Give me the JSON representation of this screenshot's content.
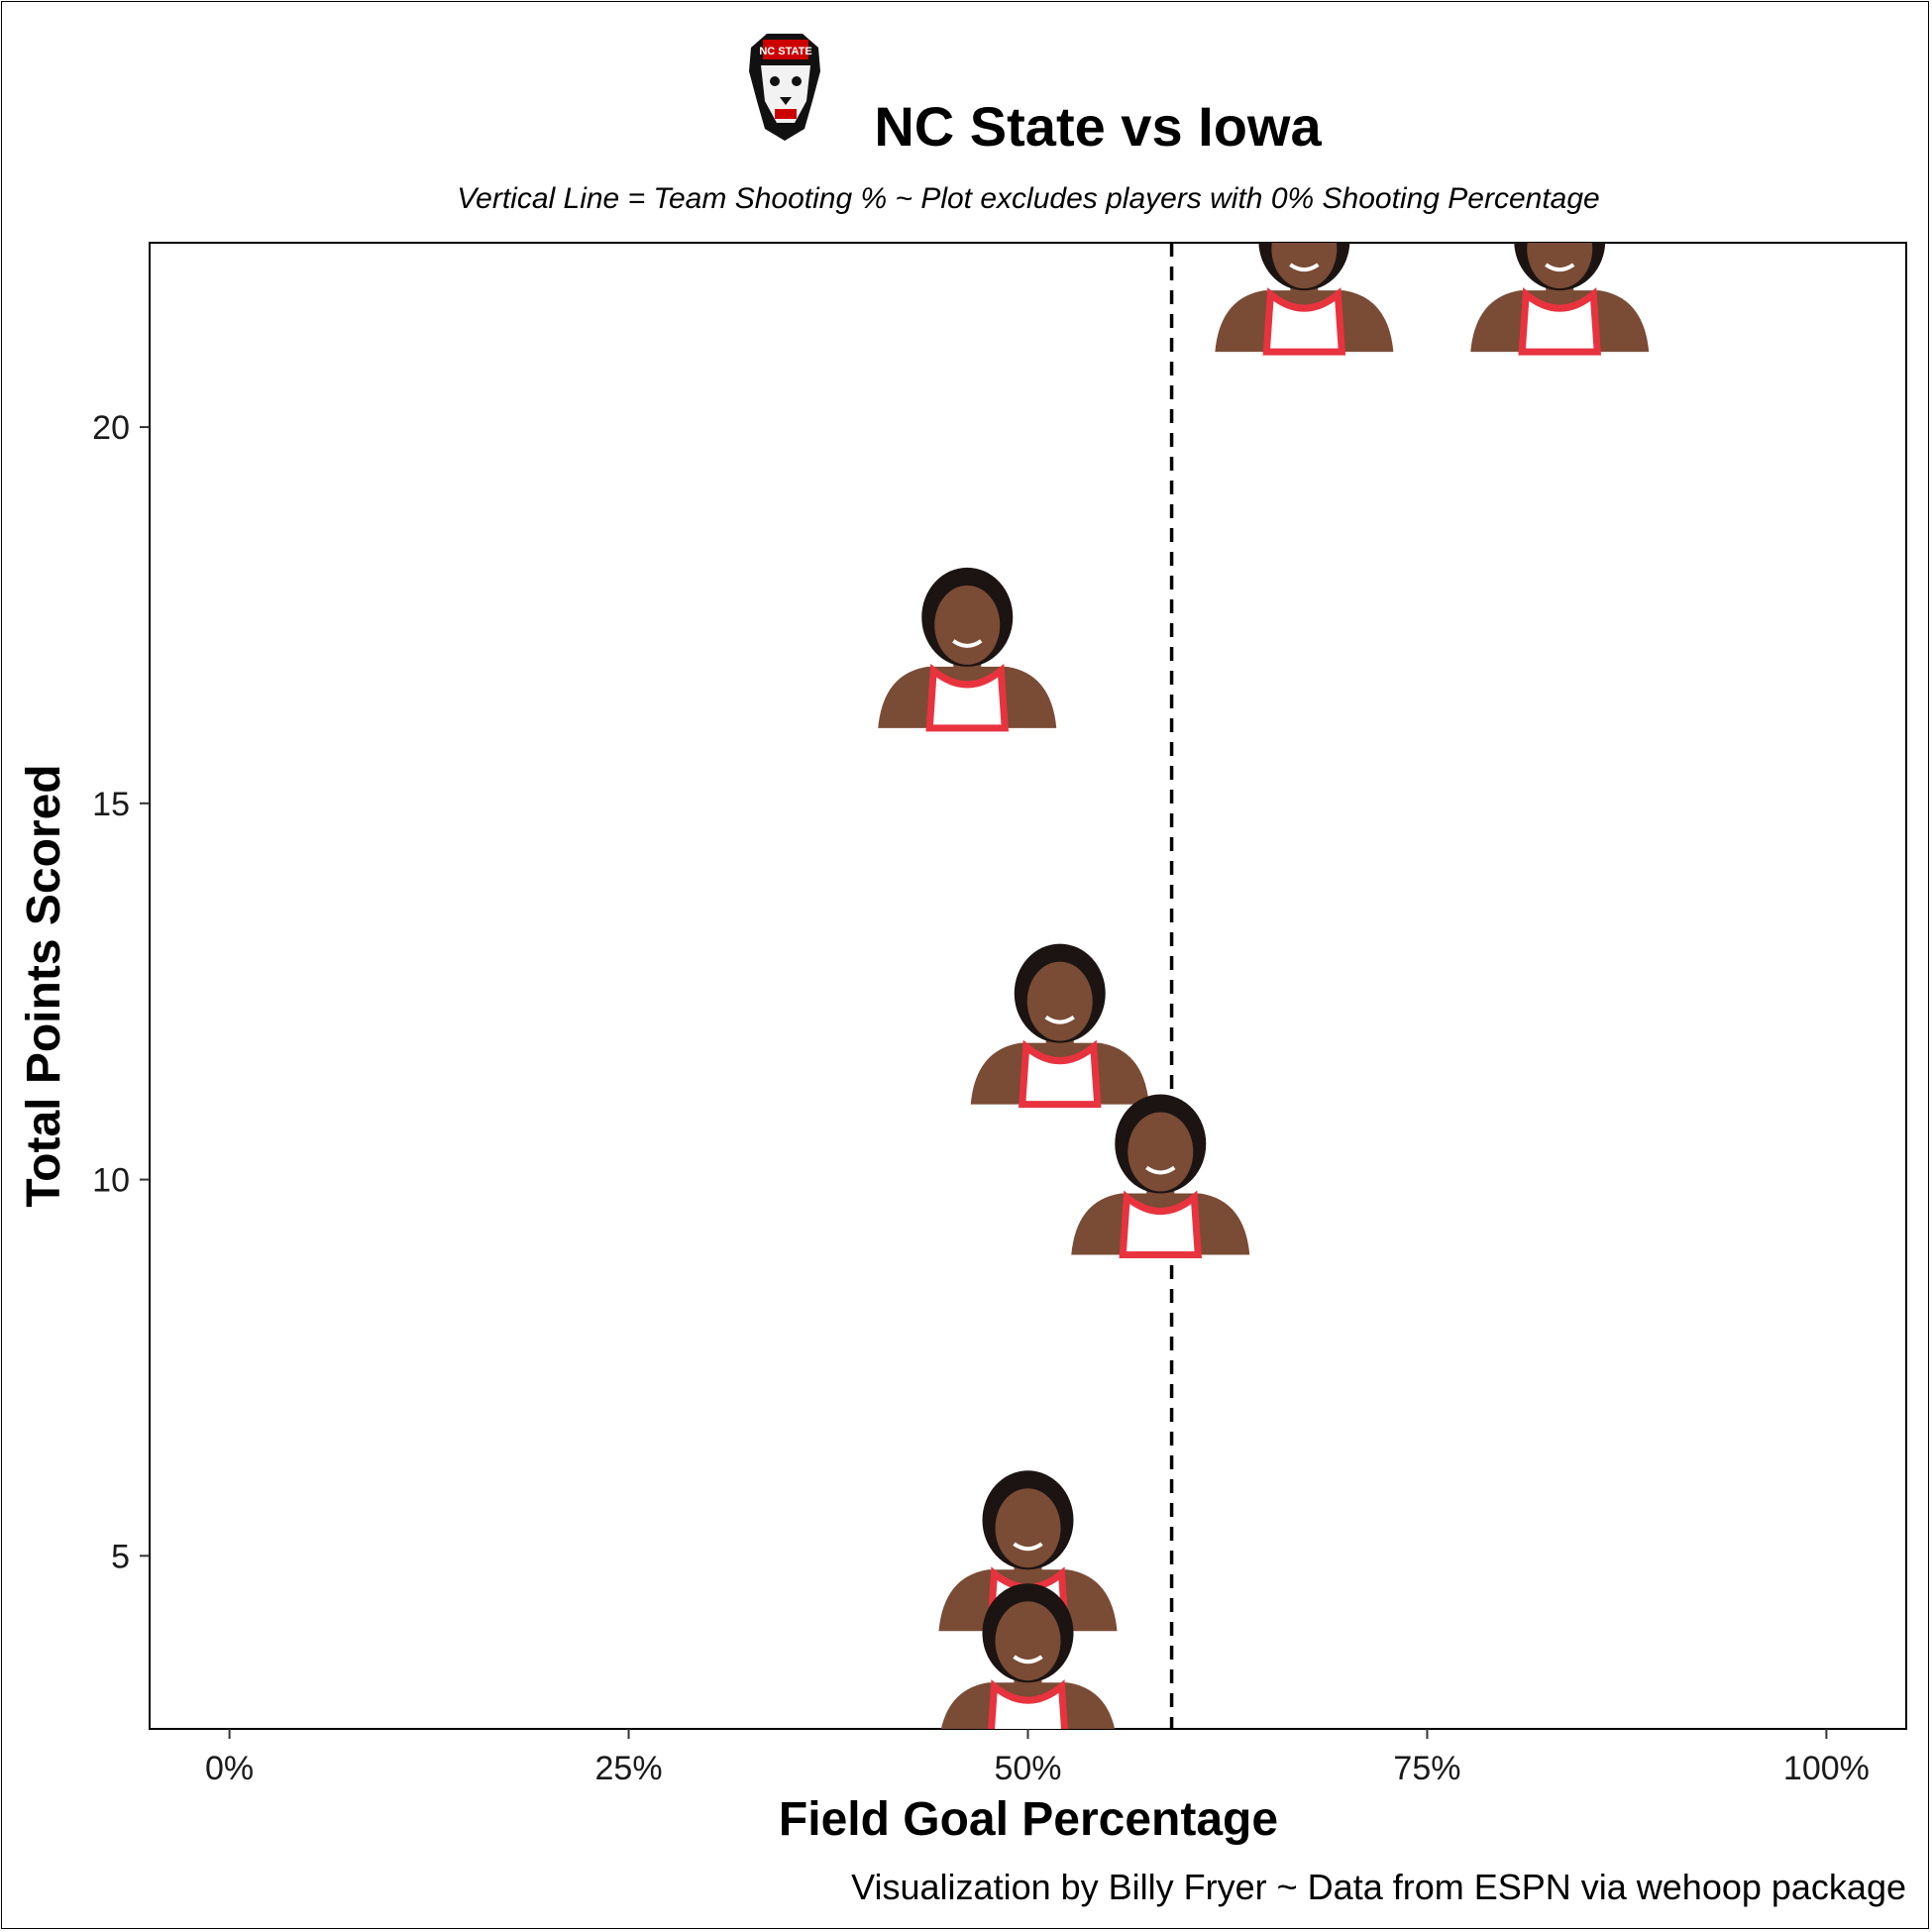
{
  "chart_data": {
    "type": "scatter",
    "title": "NC State vs Iowa",
    "subtitle": "Vertical Line = Team Shooting % ~ Plot excludes players with 0% Shooting Percentage",
    "xlabel": "Field Goal Percentage",
    "ylabel": "Total Points Scored",
    "caption": "Visualization by Billy Fryer ~ Data from ESPN via wehoop package",
    "xlim": [
      -0.05,
      1.05
    ],
    "ylim": [
      2.7,
      22.45
    ],
    "x_ticks": [
      0,
      0.25,
      0.5,
      0.75,
      1
    ],
    "x_tick_labels": [
      "0%",
      "25%",
      "50%",
      "75%",
      "100%"
    ],
    "y_ticks": [
      5,
      10,
      15,
      20
    ],
    "y_tick_labels": [
      "5",
      "10",
      "15",
      "20"
    ],
    "team_shooting_pct": 0.59,
    "points": [
      {
        "x": 0.673,
        "y": 21
      },
      {
        "x": 0.833,
        "y": 21
      },
      {
        "x": 0.462,
        "y": 16
      },
      {
        "x": 0.52,
        "y": 11
      },
      {
        "x": 0.583,
        "y": 9
      },
      {
        "x": 0.5,
        "y": 4
      },
      {
        "x": 0.5,
        "y": 2.5
      }
    ],
    "grid": false,
    "marker": "player headshot"
  },
  "colors": {
    "accent_red": "#cc0000",
    "jersey_red": "#e8333f",
    "skin": "#7a4b35",
    "hair": "#1b1412"
  }
}
